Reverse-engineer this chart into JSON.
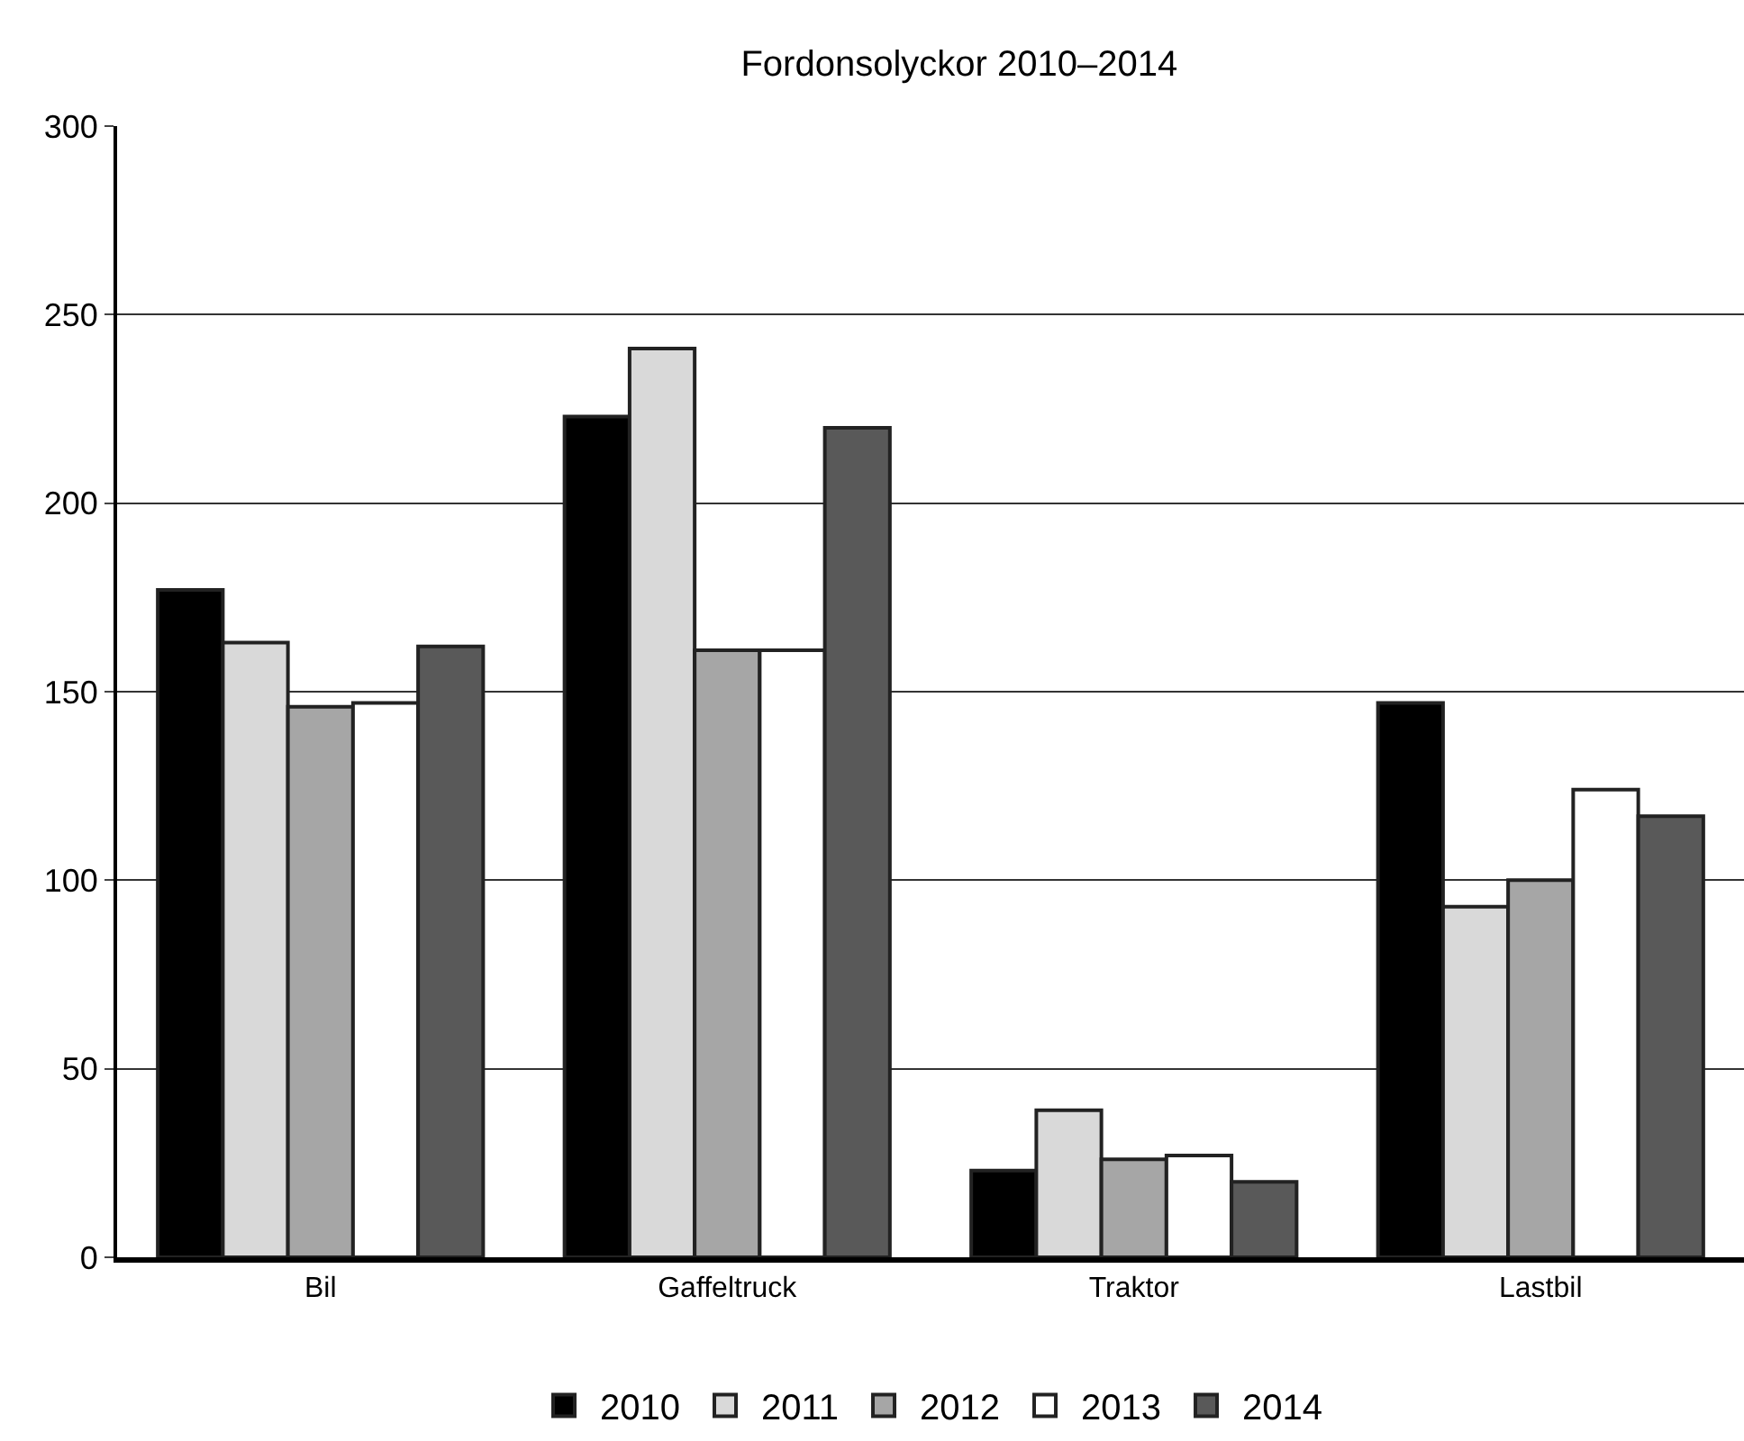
{
  "chart_data": {
    "type": "bar",
    "title": "Fordonsolyckor 2010–2014",
    "categories": [
      "Bil",
      "Gaffeltruck",
      "Traktor",
      "Lastbil"
    ],
    "series": [
      {
        "name": "2010",
        "color": "#000000",
        "values": [
          177,
          223,
          23,
          147
        ]
      },
      {
        "name": "2011",
        "color": "#d9d9d9",
        "values": [
          163,
          241,
          39,
          93
        ]
      },
      {
        "name": "2012",
        "color": "#a6a6a6",
        "values": [
          146,
          161,
          26,
          100
        ]
      },
      {
        "name": "2013",
        "color": "#ffffff",
        "values": [
          147,
          161,
          27,
          124
        ]
      },
      {
        "name": "2014",
        "color": "#595959",
        "values": [
          162,
          220,
          20,
          117
        ]
      }
    ],
    "ylim": [
      0,
      300
    ],
    "yticks": [
      0,
      50,
      100,
      150,
      200,
      250,
      300
    ],
    "grid": "y",
    "legend": "bottom"
  }
}
